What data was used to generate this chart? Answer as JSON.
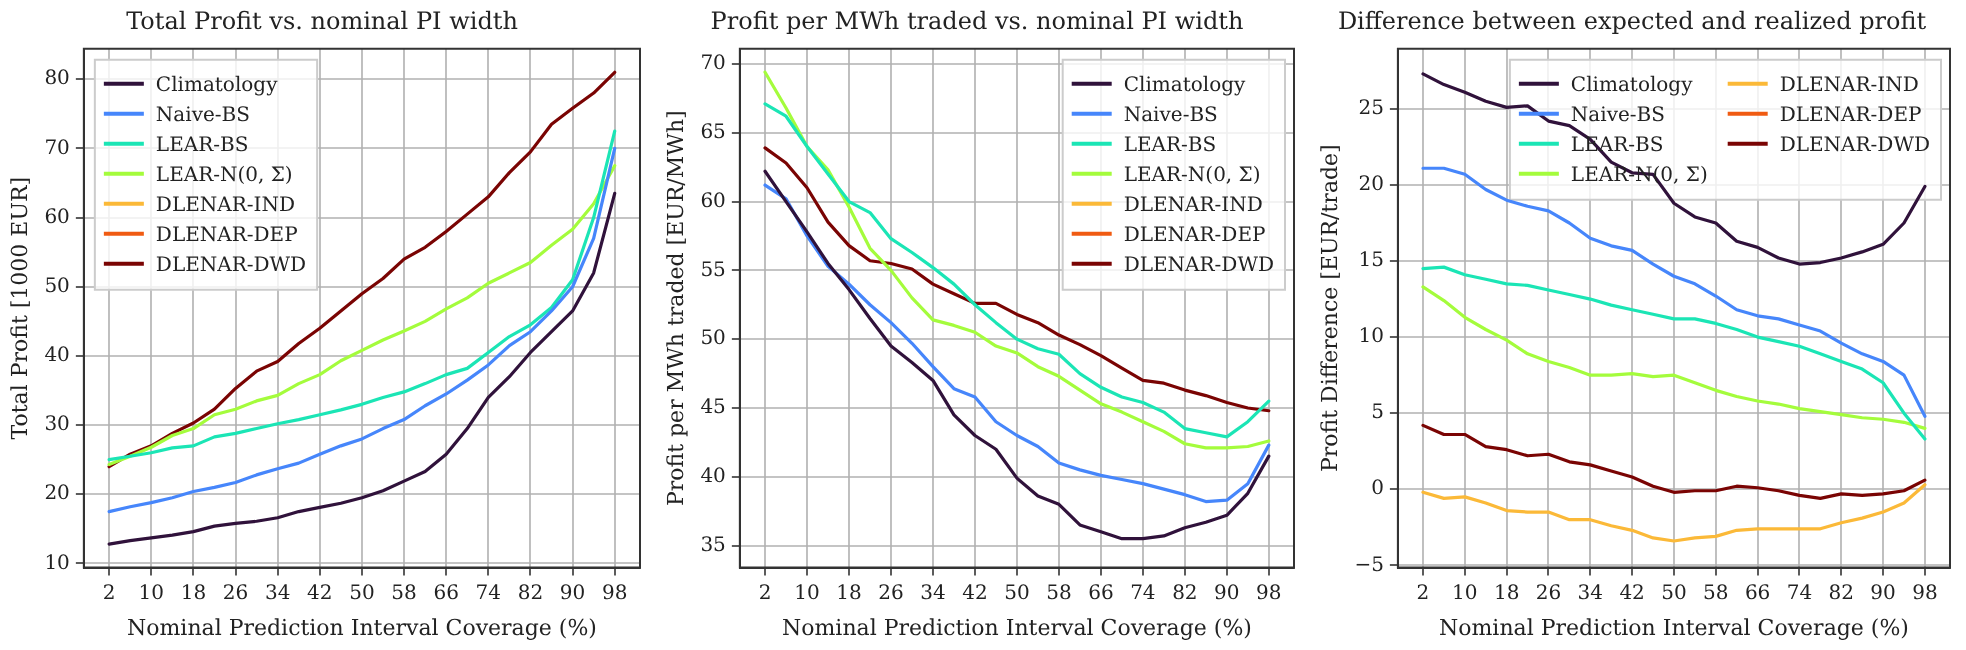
{
  "chart_data": [
    {
      "type": "line",
      "title": "Total Profit vs. nominal PI width",
      "xlabel": "Nominal Prediction Interval Coverage (%)",
      "ylabel": "Total Profit [1000 EUR]",
      "x": [
        2,
        6,
        10,
        14,
        18,
        22,
        26,
        30,
        34,
        38,
        42,
        46,
        50,
        54,
        58,
        62,
        66,
        70,
        74,
        78,
        82,
        86,
        90,
        94,
        98
      ],
      "xlim": [
        -2.8,
        102.8
      ],
      "xticks": [
        2,
        10,
        18,
        26,
        34,
        42,
        50,
        58,
        66,
        74,
        82,
        90,
        98
      ],
      "ylim": [
        9.4,
        84.4
      ],
      "yticks": [
        10,
        20,
        30,
        40,
        50,
        60,
        70,
        80
      ],
      "grid": true,
      "legend": "top left",
      "series": [
        {
          "name": "Climatology",
          "color": "#30123b",
          "values": [
            12.8,
            13.3,
            13.7,
            14.1,
            14.6,
            15.4,
            15.8,
            16.1,
            16.6,
            17.5,
            18.1,
            18.7,
            19.5,
            20.5,
            21.9,
            23.3,
            25.8,
            29.5,
            34,
            37,
            40.5,
            43.5,
            46.5,
            52,
            63.5
          ]
        },
        {
          "name": "Naive-BS",
          "color": "#4686fb",
          "values": [
            17.5,
            18.2,
            18.8,
            19.5,
            20.4,
            21,
            21.7,
            22.8,
            23.7,
            24.5,
            25.8,
            27,
            28,
            29.5,
            30.8,
            32.8,
            34.5,
            36.5,
            38.7,
            41.5,
            43.5,
            46.5,
            50,
            57,
            70
          ]
        },
        {
          "name": "LEAR-BS",
          "color": "#1be5b5",
          "values": [
            25,
            25.5,
            26,
            26.7,
            27,
            28.3,
            28.8,
            29.5,
            30.2,
            30.8,
            31.5,
            32.2,
            33,
            34,
            34.8,
            36,
            37.3,
            38.2,
            40.5,
            42.8,
            44.5,
            47,
            51,
            60,
            72.5
          ]
        },
        {
          "name": "LEAR-N(0, Σ)",
          "color": "#a4fc3c",
          "values": [
            24.3,
            25.5,
            26.8,
            28.5,
            29.5,
            31.5,
            32.3,
            33.5,
            34.3,
            36,
            37.3,
            39.3,
            40.8,
            42.3,
            43.6,
            45,
            46.8,
            48.4,
            50.5,
            52,
            53.5,
            56,
            58.3,
            62,
            67.5
          ]
        },
        {
          "name": "DLENAR-IND",
          "color": "#fbb938",
          "values": [
            null,
            null,
            null,
            null,
            null,
            null,
            null,
            null,
            null,
            null,
            null,
            null,
            null,
            null,
            null,
            null,
            null,
            null,
            null,
            null,
            null,
            null,
            null,
            null,
            null
          ]
        },
        {
          "name": "DLENAR-DEP",
          "color": "#f05b12",
          "values": [
            null,
            null,
            null,
            null,
            null,
            null,
            null,
            null,
            null,
            null,
            null,
            null,
            null,
            null,
            null,
            null,
            null,
            null,
            null,
            null,
            null,
            null,
            null,
            null,
            null
          ]
        },
        {
          "name": "DLENAR-DWD",
          "color": "#7a0403",
          "values": [
            24,
            25.8,
            27,
            28.8,
            30.3,
            32.3,
            35.3,
            37.8,
            39.2,
            41.8,
            44,
            46.5,
            49,
            51.2,
            54,
            55.7,
            58,
            60.5,
            63,
            66.5,
            69.5,
            73.5,
            75.8,
            78,
            81
          ]
        }
      ]
    },
    {
      "type": "line",
      "title": "Profit per MWh traded vs. nominal PI width",
      "xlabel": "Nominal Prediction Interval Coverage (%)",
      "ylabel": "Profit per MWh traded [EUR/MWh]",
      "x": [
        2,
        6,
        10,
        14,
        18,
        22,
        26,
        30,
        34,
        38,
        42,
        46,
        50,
        54,
        58,
        62,
        66,
        70,
        74,
        78,
        82,
        86,
        90,
        94,
        98
      ],
      "xlim": [
        -2.8,
        102.8
      ],
      "xticks": [
        2,
        10,
        18,
        26,
        34,
        42,
        50,
        58,
        66,
        74,
        82,
        90,
        98
      ],
      "ylim": [
        33.4,
        71.1
      ],
      "yticks": [
        35,
        40,
        45,
        50,
        55,
        60,
        65,
        70
      ],
      "grid": true,
      "legend": "top right",
      "series": [
        {
          "name": "Climatology",
          "color": "#30123b",
          "values": [
            62.2,
            60,
            57.8,
            55.5,
            53.6,
            51.5,
            49.5,
            48.3,
            47,
            44.5,
            43,
            42,
            39.9,
            38.6,
            38,
            36.5,
            36,
            35.5,
            35.5,
            35.7,
            36.3,
            36.7,
            37.2,
            38.8,
            41.5
          ]
        },
        {
          "name": "Naive-BS",
          "color": "#4686fb",
          "values": [
            61.2,
            60.2,
            57.5,
            55.3,
            54,
            52.5,
            51.2,
            49.7,
            48,
            46.4,
            45.8,
            44,
            43,
            42.2,
            41,
            40.5,
            40.1,
            39.8,
            39.5,
            39.1,
            38.7,
            38.2,
            38.3,
            39.5,
            42.3
          ]
        },
        {
          "name": "LEAR-BS",
          "color": "#1be5b5",
          "values": [
            67.1,
            66.2,
            64,
            62,
            60,
            59.2,
            57.3,
            56.3,
            55.2,
            54,
            52.5,
            51.2,
            50,
            49.3,
            48.9,
            47.5,
            46.5,
            45.8,
            45.4,
            44.7,
            43.5,
            43.2,
            42.9,
            44,
            45.5
          ]
        },
        {
          "name": "LEAR-N(0, Σ)",
          "color": "#a4fc3c",
          "values": [
            69.4,
            66.8,
            64,
            62.3,
            59.6,
            56.6,
            55,
            53,
            51.4,
            51,
            50.5,
            49.5,
            49,
            48,
            47.3,
            46.3,
            45.3,
            44.7,
            44,
            43.3,
            42.4,
            42.1,
            42.1,
            42.2,
            42.6
          ]
        },
        {
          "name": "DLENAR-IND",
          "color": "#fbb938",
          "values": [
            null,
            null,
            null,
            null,
            null,
            null,
            null,
            null,
            null,
            null,
            null,
            null,
            null,
            null,
            null,
            null,
            null,
            null,
            null,
            null,
            null,
            null,
            null,
            null,
            null
          ]
        },
        {
          "name": "DLENAR-DEP",
          "color": "#f05b12",
          "values": [
            null,
            null,
            null,
            null,
            null,
            null,
            null,
            null,
            null,
            null,
            null,
            null,
            null,
            null,
            null,
            null,
            null,
            null,
            null,
            null,
            null,
            null,
            null,
            null,
            null
          ]
        },
        {
          "name": "DLENAR-DWD",
          "color": "#7a0403",
          "values": [
            63.9,
            62.8,
            61,
            58.5,
            56.8,
            55.7,
            55.5,
            55.1,
            54,
            53.3,
            52.6,
            52.6,
            51.8,
            51.2,
            50.3,
            49.6,
            48.8,
            47.9,
            47,
            46.8,
            46.3,
            45.9,
            45.4,
            45,
            44.8
          ]
        }
      ]
    },
    {
      "type": "line",
      "title": "Difference between expected and realized profit",
      "xlabel": "Nominal Prediction Interval Coverage (%)",
      "ylabel": "Profit Difference [EUR/trade]",
      "x": [
        2,
        6,
        10,
        14,
        18,
        22,
        26,
        30,
        34,
        38,
        42,
        46,
        50,
        54,
        58,
        62,
        66,
        70,
        74,
        78,
        82,
        86,
        90,
        94,
        98
      ],
      "xlim": [
        -2.8,
        102.8
      ],
      "xticks": [
        2,
        10,
        18,
        26,
        34,
        42,
        50,
        58,
        66,
        74,
        82,
        90,
        98
      ],
      "ylim": [
        -5.15,
        28.95
      ],
      "yticks": [
        {
          "value": -5,
          "label": "−5"
        },
        0,
        5,
        10,
        15,
        20,
        25
      ],
      "grid": true,
      "legend": "top right",
      "series": [
        {
          "name": "Climatology",
          "color": "#30123b",
          "values": [
            27.3,
            26.6,
            26.1,
            25.5,
            25.1,
            25.2,
            24.2,
            23.9,
            23,
            21.5,
            20.8,
            20.7,
            18.8,
            17.9,
            17.5,
            16.3,
            15.9,
            15.2,
            14.8,
            14.9,
            15.2,
            15.6,
            16.1,
            17.5,
            19.9
          ]
        },
        {
          "name": "Naive-BS",
          "color": "#4686fb",
          "values": [
            21.1,
            21.1,
            20.7,
            19.7,
            19,
            18.6,
            18.3,
            17.5,
            16.5,
            16,
            15.7,
            14.8,
            14,
            13.5,
            12.7,
            11.8,
            11.4,
            11.2,
            10.8,
            10.4,
            9.6,
            8.9,
            8.4,
            7.5,
            4.8
          ]
        },
        {
          "name": "LEAR-BS",
          "color": "#1be5b5",
          "values": [
            14.5,
            14.6,
            14.1,
            13.8,
            13.5,
            13.4,
            13.1,
            12.8,
            12.5,
            12.1,
            11.8,
            11.5,
            11.2,
            11.2,
            10.9,
            10.5,
            10,
            9.7,
            9.4,
            8.9,
            8.4,
            7.9,
            7,
            5,
            3.3
          ]
        },
        {
          "name": "LEAR-N(0, Σ)",
          "color": "#a4fc3c",
          "values": [
            13.3,
            12.4,
            11.3,
            10.5,
            9.8,
            8.9,
            8.4,
            8,
            7.5,
            7.5,
            7.6,
            7.4,
            7.5,
            7,
            6.5,
            6.1,
            5.8,
            5.6,
            5.3,
            5.1,
            4.9,
            4.7,
            4.6,
            4.4,
            4
          ]
        },
        {
          "name": "DLENAR-IND",
          "color": "#fbb938",
          "values": [
            -0.2,
            -0.6,
            -0.5,
            -0.9,
            -1.4,
            -1.5,
            -1.5,
            -2,
            -2,
            -2.4,
            -2.7,
            -3.2,
            -3.4,
            -3.2,
            -3.1,
            -2.7,
            -2.6,
            -2.6,
            -2.6,
            -2.6,
            -2.2,
            -1.9,
            -1.5,
            -0.9,
            0.3
          ]
        },
        {
          "name": "DLENAR-DEP",
          "color": "#f05b12",
          "values": [
            null,
            null,
            null,
            null,
            null,
            null,
            null,
            null,
            null,
            null,
            null,
            null,
            null,
            null,
            null,
            null,
            null,
            null,
            null,
            null,
            null,
            null,
            null,
            null,
            null
          ]
        },
        {
          "name": "DLENAR-DWD",
          "color": "#7a0403",
          "values": [
            4.2,
            3.6,
            3.6,
            2.8,
            2.6,
            2.2,
            2.3,
            1.8,
            1.6,
            1.2,
            0.8,
            0.2,
            -0.2,
            -0.1,
            -0.1,
            0.2,
            0.1,
            -0.1,
            -0.4,
            -0.6,
            -0.3,
            -0.4,
            -0.3,
            -0.1,
            0.6
          ]
        }
      ]
    }
  ]
}
